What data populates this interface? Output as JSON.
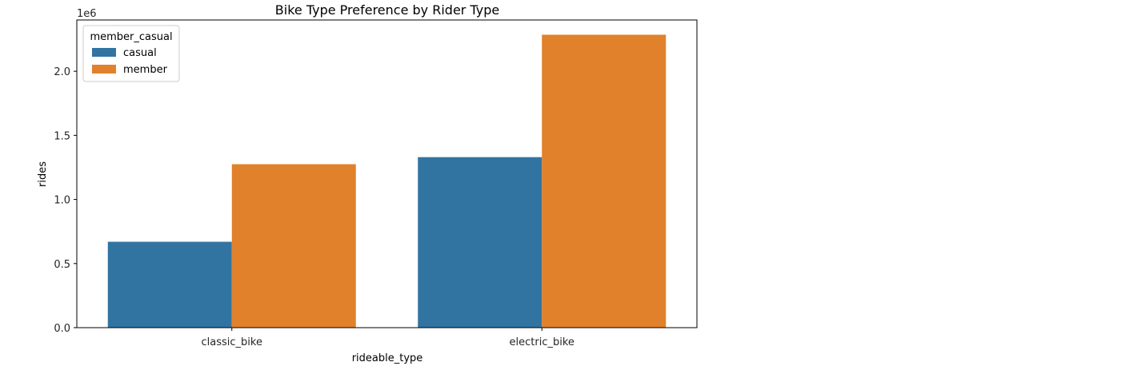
{
  "chart_data": {
    "type": "bar",
    "title": "Bike Type Preference by Rider Type",
    "xlabel": "rideable_type",
    "ylabel": "rides",
    "y_scale_label": "1e6",
    "categories": [
      "classic_bike",
      "electric_bike"
    ],
    "series": [
      {
        "name": "casual",
        "color": "#3274a1",
        "values": [
          670000,
          1330000
        ]
      },
      {
        "name": "member",
        "color": "#e1812c",
        "values": [
          1275000,
          2285000
        ]
      }
    ],
    "ylim": [
      0,
      2400000
    ],
    "yticks": [
      0,
      500000,
      1000000,
      1500000,
      2000000
    ],
    "ytick_labels": [
      "0.0",
      "0.5",
      "1.0",
      "1.5",
      "2.0"
    ],
    "legend": {
      "title": "member_casual",
      "position": "top-left"
    },
    "grid": false
  }
}
